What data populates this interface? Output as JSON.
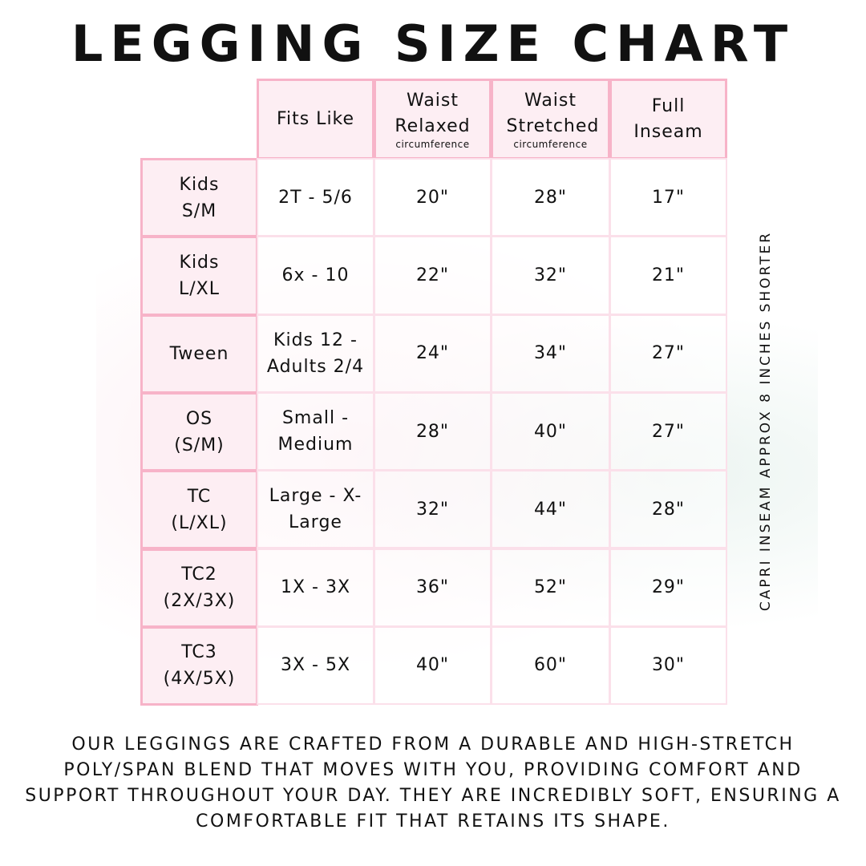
{
  "title": "LEGGING SIZE CHART",
  "table": {
    "headers": [
      {
        "main": "Fits Like",
        "sub": ""
      },
      {
        "main": "Waist Relaxed",
        "sub": "circumference"
      },
      {
        "main": "Waist Stretched",
        "sub": "circumference"
      },
      {
        "main": "Full Inseam",
        "sub": ""
      }
    ],
    "rows": [
      {
        "size": "Kids S/M",
        "cells": [
          "2T - 5/6",
          "20\"",
          "28\"",
          "17\""
        ]
      },
      {
        "size": "Kids L/XL",
        "cells": [
          "6x - 10",
          "22\"",
          "32\"",
          "21\""
        ]
      },
      {
        "size": "Tween",
        "cells": [
          "Kids 12 - Adults 2/4",
          "24\"",
          "34\"",
          "27\""
        ]
      },
      {
        "size": "OS (S/M)",
        "cells": [
          "Small - Medium",
          "28\"",
          "40\"",
          "27\""
        ]
      },
      {
        "size": "TC (L/XL)",
        "cells": [
          "Large - X-Large",
          "32\"",
          "44\"",
          "28\""
        ]
      },
      {
        "size": "TC2 (2X/3X)",
        "cells": [
          "1X - 3X",
          "36\"",
          "52\"",
          "29\""
        ]
      },
      {
        "size": "TC3 (4X/5X)",
        "cells": [
          "3X - 5X",
          "40\"",
          "60\"",
          "30\""
        ]
      }
    ]
  },
  "side_note": "CAPRI INSEAM APPROX 8 INCHES SHORTER",
  "description": "Our leggings are crafted from a durable and high-stretch poly/span blend that moves with you, providing comfort and support throughout your day. They are incredibly soft, ensuring a comfortable fit that retains its shape.",
  "colors": {
    "border": "#f7b3c8",
    "header_bg": "#fdeef3"
  }
}
